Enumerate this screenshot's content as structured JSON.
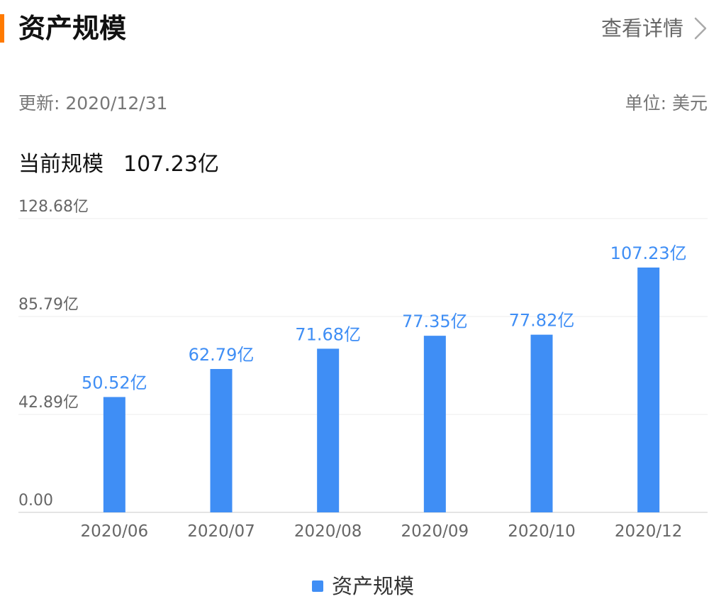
{
  "header": {
    "title": "资产规模",
    "details_label": "查看详情",
    "accent_color": "#ff7a00"
  },
  "meta": {
    "updated": "更新: 2020/12/31",
    "unit": "单位: 美元"
  },
  "current": {
    "label": "当前规模",
    "value": "107.23亿"
  },
  "legend": {
    "label": "资产规模",
    "color": "#3f8ef5"
  },
  "chart_data": {
    "type": "bar",
    "categories": [
      "2020/06",
      "2020/07",
      "2020/08",
      "2020/09",
      "2020/10",
      "2020/12"
    ],
    "series": [
      {
        "name": "资产规模",
        "values": [
          50.52,
          62.79,
          71.68,
          77.35,
          77.82,
          107.23
        ],
        "labels": [
          "50.52亿",
          "62.79亿",
          "71.68亿",
          "77.35亿",
          "77.82亿",
          "107.23亿"
        ],
        "color": "#3f8ef5"
      }
    ],
    "ylim": [
      0,
      128.68
    ],
    "yticks": [
      0,
      42.89,
      85.79,
      128.68
    ],
    "ytick_labels": [
      "0.00",
      "42.89亿",
      "85.79亿",
      "128.68亿"
    ],
    "grid": true,
    "legend_position": "bottom-center",
    "label_color": "#3f8ef5",
    "axis_label_color": "#666666"
  }
}
